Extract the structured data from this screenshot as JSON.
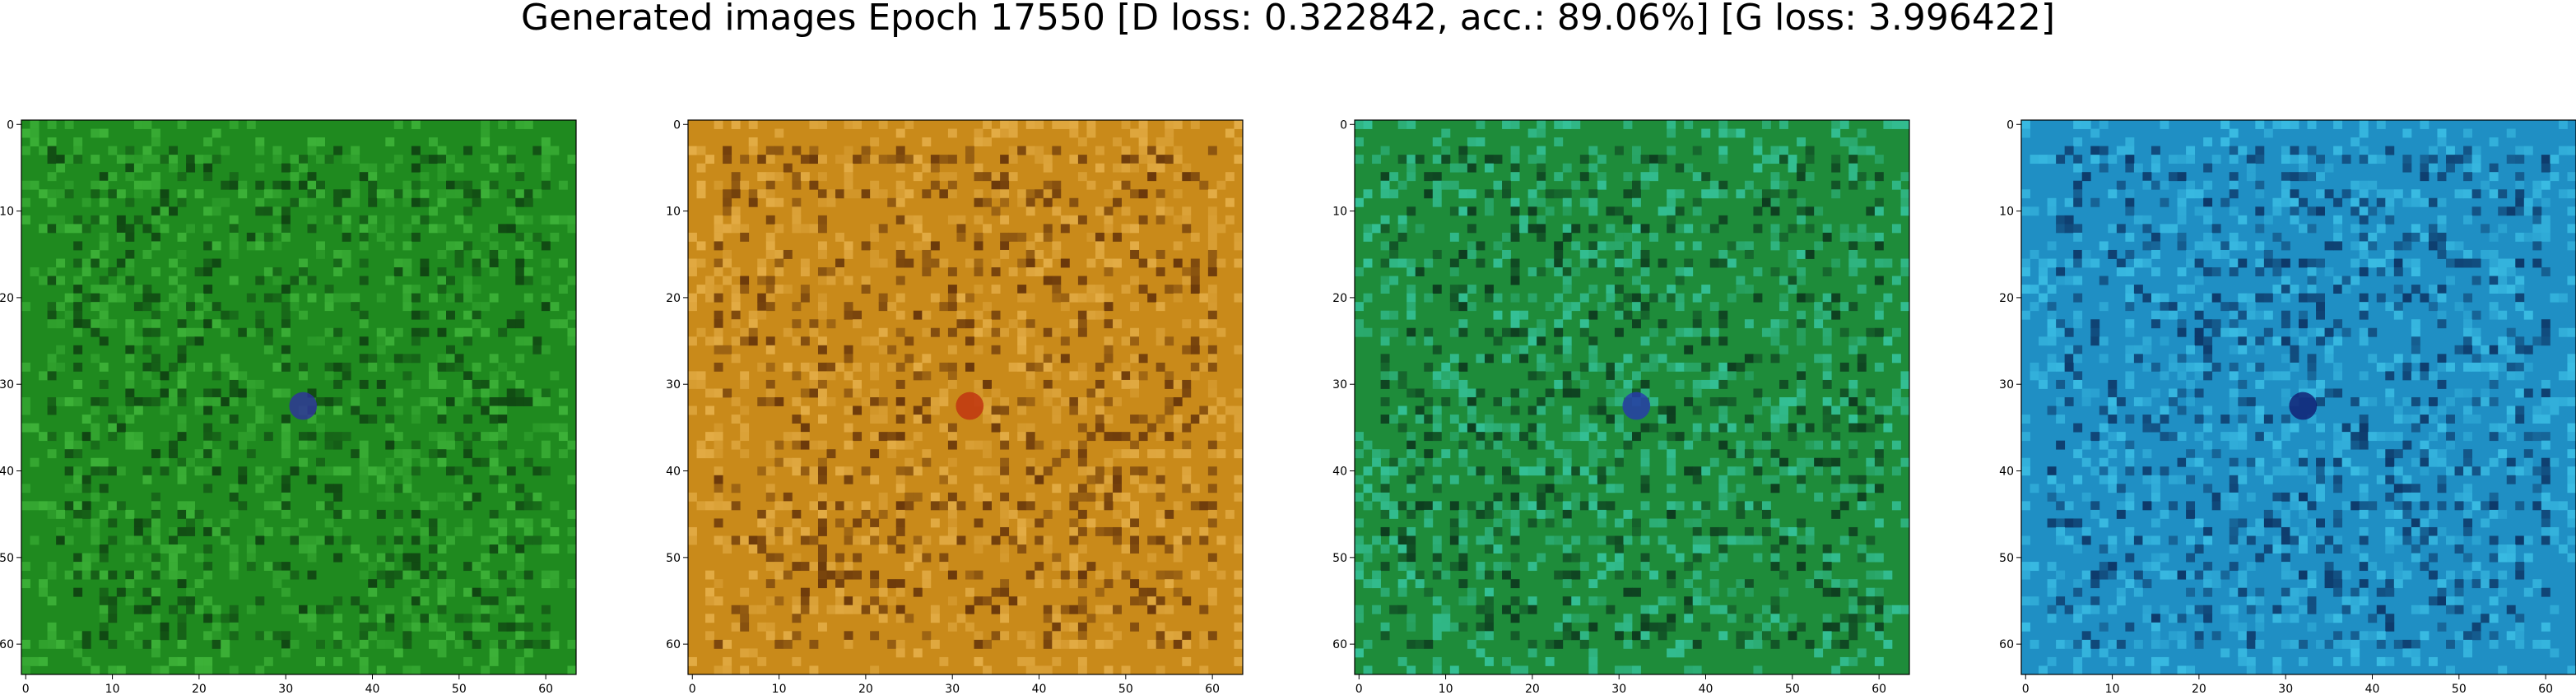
{
  "figure": {
    "title": "Generated images Epoch 17550 [D loss: 0.322842, acc.: 89.06%] [G loss: 3.996422]"
  },
  "axes_ticks": {
    "x": [
      "0",
      "10",
      "20",
      "30",
      "40",
      "50",
      "60"
    ],
    "y": [
      "0",
      "10",
      "20",
      "30",
      "40",
      "50",
      "60"
    ]
  },
  "panels": [
    {
      "name": "generated-image-1",
      "palette": {
        "base": "#1f8a1f",
        "light": "#3fb53a",
        "dark": "#0d3a10",
        "accent": "#3030a0"
      }
    },
    {
      "name": "generated-image-2",
      "palette": {
        "base": "#c98a1a",
        "light": "#e6b04a",
        "dark": "#5a2a08",
        "accent": "#c03010"
      }
    },
    {
      "name": "generated-image-3",
      "palette": {
        "base": "#1e8c3a",
        "light": "#36c6a0",
        "dark": "#0a2f1a",
        "accent": "#2838b0"
      }
    },
    {
      "name": "generated-image-4",
      "palette": {
        "base": "#1f8fc4",
        "light": "#3cc0e6",
        "dark": "#0a2a5a",
        "accent": "#101a70"
      }
    }
  ],
  "image_resolution": 64
}
